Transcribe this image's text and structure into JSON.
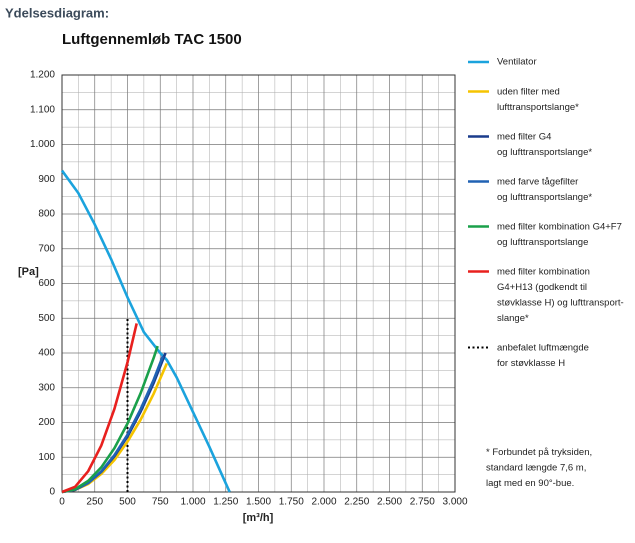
{
  "header": "Ydelsesdiagram:",
  "chart_data": {
    "type": "line",
    "title": "Luftgennemløb TAC 1500",
    "x_label": "[m³/h]",
    "y_label": "[Pa]",
    "xlim": [
      0,
      3000
    ],
    "ylim": [
      0,
      1200
    ],
    "xticks": [
      0,
      250,
      500,
      750,
      {
        "value": 1000,
        "label": "1.000"
      },
      {
        "value": 1250,
        "label": "1.250"
      },
      {
        "value": 1500,
        "label": "1.500"
      },
      {
        "value": 1750,
        "label": "1.750"
      },
      {
        "value": 2000,
        "label": "2.000"
      },
      {
        "value": 2250,
        "label": "2.250"
      },
      {
        "value": 2500,
        "label": "2.500"
      },
      {
        "value": 2750,
        "label": "2.750"
      },
      {
        "value": 3000,
        "label": "3.000"
      }
    ],
    "yticks": [
      0,
      100,
      200,
      300,
      400,
      500,
      600,
      700,
      800,
      900,
      {
        "value": 1000,
        "label": "1.000"
      },
      {
        "value": 1100,
        "label": "1.100"
      },
      {
        "value": 1200,
        "label": "1.200"
      }
    ],
    "grid": true,
    "series": [
      {
        "name": "Ventilator",
        "color": "#1ba3dd",
        "x": [
          0,
          125,
          250,
          375,
          500,
          625,
          750,
          800,
          875,
          1000,
          1125,
          1250,
          1280
        ],
        "values": [
          925,
          860,
          770,
          670,
          560,
          460,
          400,
          380,
          330,
          230,
          130,
          25,
          0
        ]
      },
      {
        "name": "uden filter med\nlufttransportslange*",
        "color": "#f5c400",
        "x": [
          0,
          100,
          200,
          300,
          400,
          500,
          600,
          700,
          800
        ],
        "values": [
          0,
          6,
          23,
          52,
          92,
          145,
          208,
          283,
          370
        ]
      },
      {
        "name": "med filter G4\nog lufttransportslange*",
        "color": "#1a3c8c",
        "x": [
          0,
          100,
          200,
          300,
          400,
          500,
          600,
          700,
          790
        ],
        "values": [
          0,
          6,
          26,
          58,
          103,
          160,
          231,
          314,
          400
        ]
      },
      {
        "name": "med farve tågefilter\nog lufttransportslange*",
        "color": "#2062b4",
        "x": [
          0,
          100,
          200,
          300,
          400,
          500,
          600,
          700,
          770
        ],
        "values": [
          0,
          7,
          26,
          59,
          106,
          165,
          238,
          323,
          391
        ]
      },
      {
        "name": "med filter kombination G4+F7\nog lufttransportslange",
        "color": "#1aa04a",
        "x": [
          0,
          100,
          200,
          300,
          400,
          500,
          600,
          700,
          730
        ],
        "values": [
          0,
          8,
          32,
          71,
          126,
          197,
          284,
          386,
          420
        ]
      },
      {
        "name": "med filter kombination\nG4+H13 (godkendt til\nstøvklasse H) og lufttransport-\nslange*",
        "color": "#e8201e",
        "x": [
          0,
          100,
          200,
          300,
          400,
          500,
          570
        ],
        "values": [
          0,
          15,
          60,
          134,
          239,
          373,
          485
        ]
      }
    ],
    "annotation": {
      "label": "anbefalet luftmængde\nfor støvklasse H",
      "x": 500,
      "y": 500
    },
    "note": "* Forbundet på tryksiden,\nstandard længde 7,6 m,\nlagt med en 90°-bue."
  }
}
